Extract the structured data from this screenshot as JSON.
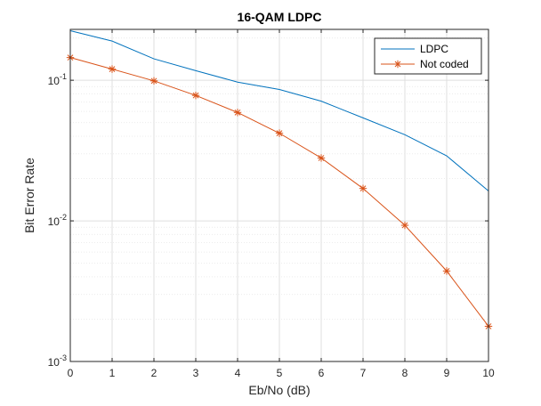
{
  "chart_data": {
    "type": "line",
    "title": "16-QAM LDPC",
    "xlabel": "Eb/No (dB)",
    "ylabel": "Bit Error Rate",
    "xlim": [
      0,
      10
    ],
    "ylim": [
      0.001,
      0.23
    ],
    "yscale": "log",
    "grid": true,
    "legend_position": "top-right",
    "x": [
      0,
      1,
      2,
      3,
      4,
      5,
      6,
      7,
      8,
      9,
      10
    ],
    "x_ticks": [
      "0",
      "1",
      "2",
      "3",
      "4",
      "5",
      "6",
      "7",
      "8",
      "9",
      "10"
    ],
    "y_ticks": [
      {
        "value": 0.001,
        "base": "10",
        "exp": "-3"
      },
      {
        "value": 0.01,
        "base": "10",
        "exp": "-2"
      },
      {
        "value": 0.1,
        "base": "10",
        "exp": "-1"
      }
    ],
    "series": [
      {
        "name": "LDPC",
        "color": "#0072BD",
        "marker": "none",
        "values": [
          0.225,
          0.19,
          0.142,
          0.117,
          0.097,
          0.086,
          0.071,
          0.054,
          0.041,
          0.029,
          0.0163
        ]
      },
      {
        "name": "Not coded",
        "color": "#D95319",
        "marker": "asterisk",
        "values": [
          0.145,
          0.12,
          0.099,
          0.078,
          0.059,
          0.042,
          0.028,
          0.017,
          0.0093,
          0.0044,
          0.00178
        ]
      }
    ]
  }
}
